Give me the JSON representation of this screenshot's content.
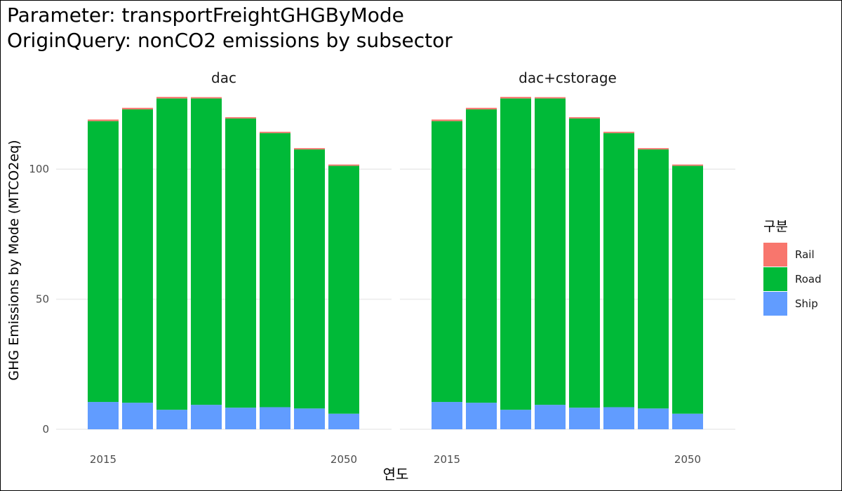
{
  "title_lines": [
    "Parameter: transportFreightGHGByMode",
    "OriginQuery: nonCO2 emissions by subsector"
  ],
  "colors": {
    "Rail": "#F8766D",
    "Road": "#00BA38",
    "Ship": "#619CFF",
    "grid": "#ebebeb",
    "tick": "#4d4d4d"
  },
  "chart_data": {
    "type": "bar",
    "stacked": true,
    "title": "Parameter: transportFreightGHGByMode\nOriginQuery: nonCO2 emissions by subsector",
    "xlabel": "연도",
    "ylabel": "GHG Emissions by Mode (MTCO2eq)",
    "ylim": [
      0,
      130
    ],
    "y_ticks": [
      0,
      50,
      100
    ],
    "x_tick_labels": [
      "2015",
      "2050"
    ],
    "x": [
      2015,
      2020,
      2025,
      2030,
      2035,
      2040,
      2045,
      2050
    ],
    "legend_title": "구분",
    "legend_position": "right",
    "grid": true,
    "facets": [
      {
        "name": "dac",
        "series": [
          {
            "name": "Ship",
            "values": [
              10.5,
              10.2,
              7.5,
              9.4,
              8.3,
              8.5,
              8.0,
              6.0
            ]
          },
          {
            "name": "Road",
            "values": [
              108.0,
              112.8,
              119.7,
              117.8,
              111.2,
              105.4,
              99.6,
              95.3
            ]
          },
          {
            "name": "Rail",
            "values": [
              0.6,
              0.6,
              0.6,
              0.5,
              0.5,
              0.5,
              0.5,
              0.5
            ]
          }
        ]
      },
      {
        "name": "dac+cstorage",
        "series": [
          {
            "name": "Ship",
            "values": [
              10.5,
              10.2,
              7.5,
              9.4,
              8.3,
              8.5,
              8.0,
              6.0
            ]
          },
          {
            "name": "Road",
            "values": [
              108.0,
              112.8,
              119.7,
              117.8,
              111.2,
              105.4,
              99.6,
              95.3
            ]
          },
          {
            "name": "Rail",
            "values": [
              0.6,
              0.6,
              0.6,
              0.5,
              0.5,
              0.5,
              0.5,
              0.5
            ]
          }
        ]
      }
    ]
  }
}
